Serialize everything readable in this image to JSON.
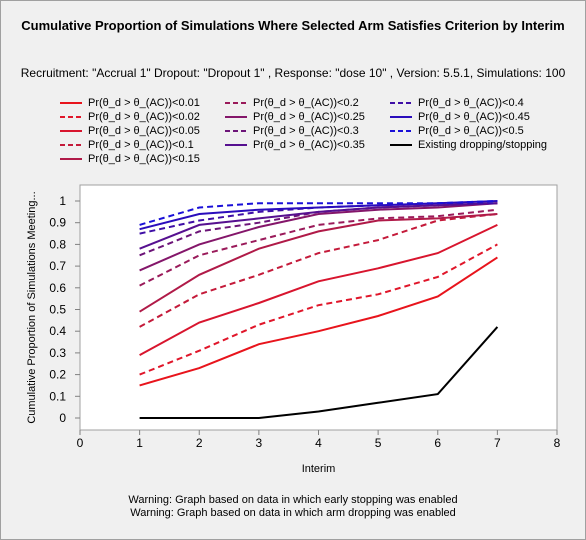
{
  "chart_data": {
    "type": "line",
    "title": "Cumulative Proportion of Simulations Where Selected Arm Satisfies Criterion by Interim",
    "subtitle": "Recruitment: \"Accrual 1\" Dropout: \"Dropout 1\" , Response: \"dose 10\" , Version: 5.5.1, Simulations: 100",
    "xlabel": "Interim",
    "ylabel": "Cumulative Proportion of Simulations Meeting...",
    "xlim": [
      0,
      8
    ],
    "ylim": [
      0,
      1
    ],
    "x_ticks": [
      "0",
      "1",
      "2",
      "3",
      "4",
      "5",
      "6",
      "7",
      "8"
    ],
    "y_ticks": [
      "0",
      "0.1",
      "0.2",
      "0.3",
      "0.4",
      "0.5",
      "0.6",
      "0.7",
      "0.8",
      "0.9",
      "1"
    ],
    "x": [
      1,
      2,
      3,
      4,
      5,
      6,
      7
    ],
    "legend_position": "top",
    "grid": false,
    "series": [
      {
        "name": "Pr(θ_d > θ_(AC))<0.01",
        "color": "#e8141c",
        "dash": false,
        "values": [
          0.15,
          0.23,
          0.34,
          0.4,
          0.47,
          0.56,
          0.74
        ]
      },
      {
        "name": "Pr(θ_d > θ_(AC))<0.02",
        "color": "#e0162a",
        "dash": true,
        "values": [
          0.2,
          0.31,
          0.43,
          0.52,
          0.57,
          0.65,
          0.8
        ]
      },
      {
        "name": "Pr(θ_d > θ_(AC))<0.05",
        "color": "#d8152e",
        "dash": false,
        "values": [
          0.29,
          0.44,
          0.53,
          0.63,
          0.69,
          0.76,
          0.89
        ]
      },
      {
        "name": "Pr(θ_d > θ_(AC))<0.1",
        "color": "#c41a3a",
        "dash": true,
        "values": [
          0.42,
          0.57,
          0.66,
          0.76,
          0.82,
          0.91,
          0.94
        ]
      },
      {
        "name": "Pr(θ_d > θ_(AC))<0.15",
        "color": "#b01a48",
        "dash": false,
        "values": [
          0.49,
          0.66,
          0.78,
          0.86,
          0.91,
          0.92,
          0.94
        ]
      },
      {
        "name": "Pr(θ_d > θ_(AC))<0.2",
        "color": "#9a1a5a",
        "dash": true,
        "values": [
          0.61,
          0.75,
          0.82,
          0.89,
          0.92,
          0.93,
          0.96
        ]
      },
      {
        "name": "Pr(θ_d > θ_(AC))<0.25",
        "color": "#84166a",
        "dash": false,
        "values": [
          0.68,
          0.8,
          0.88,
          0.94,
          0.96,
          0.97,
          0.99
        ]
      },
      {
        "name": "Pr(θ_d > θ_(AC))<0.3",
        "color": "#6c1478",
        "dash": true,
        "values": [
          0.75,
          0.86,
          0.9,
          0.95,
          0.97,
          0.98,
          0.99
        ]
      },
      {
        "name": "Pr(θ_d > θ_(AC))<0.35",
        "color": "#561090",
        "dash": false,
        "values": [
          0.78,
          0.89,
          0.92,
          0.95,
          0.97,
          0.98,
          0.99
        ]
      },
      {
        "name": "Pr(θ_d > θ_(AC))<0.4",
        "color": "#3e0ea6",
        "dash": true,
        "values": [
          0.85,
          0.91,
          0.95,
          0.97,
          0.98,
          0.99,
          0.99
        ]
      },
      {
        "name": "Pr(θ_d > θ_(AC))<0.45",
        "color": "#2a0cbc",
        "dash": false,
        "values": [
          0.87,
          0.94,
          0.96,
          0.97,
          0.98,
          0.99,
          1.0
        ]
      },
      {
        "name": "Pr(θ_d > θ_(AC))<0.5",
        "color": "#1a10d8",
        "dash": true,
        "values": [
          0.89,
          0.97,
          0.99,
          0.99,
          0.99,
          0.99,
          1.0
        ]
      },
      {
        "name": "Existing dropping/stopping",
        "color": "#000000",
        "dash": false,
        "values": [
          0.0,
          0.0,
          0.0,
          0.03,
          0.07,
          0.11,
          0.42
        ]
      }
    ],
    "annotations": [
      "Warning: Graph based on data in which early stopping was enabled",
      "Warning: Graph based on data in which arm dropping was enabled"
    ]
  }
}
